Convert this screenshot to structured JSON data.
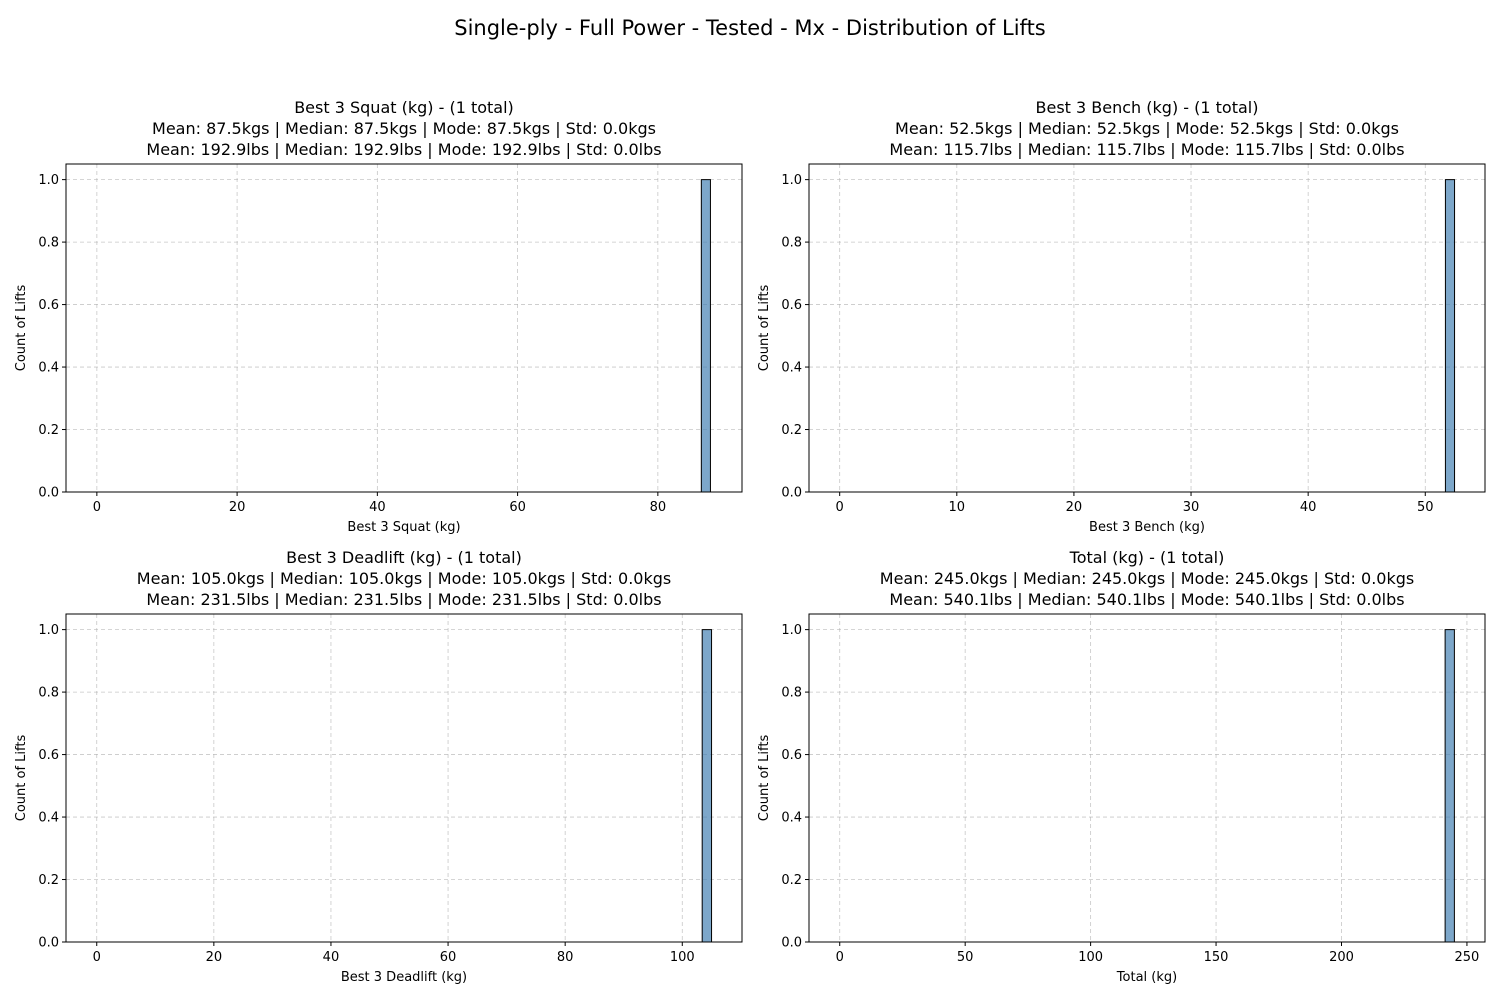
{
  "figure": {
    "suptitle": "Single-ply - Full Power - Tested - Mx - Distribution of Lifts"
  },
  "colors": {
    "bar_fill": "#4682b4",
    "bar_edge": "#000000",
    "grid": "#b0b0b0",
    "axis": "#000000"
  },
  "chart_data": [
    {
      "type": "bar",
      "title_lines": [
        "Best 3 Squat (kg) - (1 total)",
        "Mean: 87.5kgs | Median: 87.5kgs | Mode: 87.5kgs | Std: 0.0kgs",
        "Mean: 192.9lbs | Median: 192.9lbs | Mode: 192.9lbs | Std: 0.0lbs"
      ],
      "xlabel": "Best 3 Squat (kg)",
      "ylabel": "Count of Lifts",
      "xlim": [
        -4.4,
        92.0
      ],
      "ylim": [
        0,
        1.05
      ],
      "xticks": [
        0,
        20,
        40,
        60,
        80
      ],
      "xtick_labels": [
        "0",
        "20",
        "40",
        "60",
        "80"
      ],
      "yticks": [
        0,
        0.2,
        0.4,
        0.6,
        0.8,
        1.0
      ],
      "ytick_labels": [
        "0.0",
        "0.2",
        "0.4",
        "0.6",
        "0.8",
        "1.0"
      ],
      "bars": [
        {
          "x0": 86.2,
          "x1": 87.5,
          "count": 1
        }
      ],
      "grid": true
    },
    {
      "type": "bar",
      "title_lines": [
        "Best 3 Bench (kg) - (1 total)",
        "Mean: 52.5kgs | Median: 52.5kgs | Mode: 52.5kgs | Std: 0.0kgs",
        "Mean: 115.7lbs | Median: 115.7lbs | Mode: 115.7lbs | Std: 0.0lbs"
      ],
      "xlabel": "Best 3 Bench (kg)",
      "ylabel": "Count of Lifts",
      "xlim": [
        -2.62,
        55.1
      ],
      "ylim": [
        0,
        1.05
      ],
      "xticks": [
        0,
        10,
        20,
        30,
        40,
        50
      ],
      "xtick_labels": [
        "0",
        "10",
        "20",
        "30",
        "40",
        "50"
      ],
      "yticks": [
        0,
        0.2,
        0.4,
        0.6,
        0.8,
        1.0
      ],
      "ytick_labels": [
        "0.0",
        "0.2",
        "0.4",
        "0.6",
        "0.8",
        "1.0"
      ],
      "bars": [
        {
          "x0": 51.72,
          "x1": 52.5,
          "count": 1
        }
      ],
      "grid": true
    },
    {
      "type": "bar",
      "title_lines": [
        "Best 3 Deadlift (kg) - (1 total)",
        "Mean: 105.0kgs | Median: 105.0kgs | Mode: 105.0kgs | Std: 0.0kgs",
        "Mean: 231.5lbs | Median: 231.5lbs | Mode: 231.5lbs | Std: 0.0lbs"
      ],
      "xlabel": "Best 3 Deadlift (kg)",
      "ylabel": "Count of Lifts",
      "xlim": [
        -5.25,
        110.2
      ],
      "ylim": [
        0,
        1.05
      ],
      "xticks": [
        0,
        20,
        40,
        60,
        80,
        100
      ],
      "xtick_labels": [
        "0",
        "20",
        "40",
        "60",
        "80",
        "100"
      ],
      "yticks": [
        0,
        0.2,
        0.4,
        0.6,
        0.8,
        1.0
      ],
      "ytick_labels": [
        "0.0",
        "0.2",
        "0.4",
        "0.6",
        "0.8",
        "1.0"
      ],
      "bars": [
        {
          "x0": 103.4,
          "x1": 105.0,
          "count": 1
        }
      ],
      "grid": true
    },
    {
      "type": "bar",
      "title_lines": [
        "Total (kg) - (1 total)",
        "Mean: 245.0kgs | Median: 245.0kgs | Mode: 245.0kgs | Std: 0.0kgs",
        "Mean: 540.1lbs | Median: 540.1lbs | Mode: 540.1lbs | Std: 0.0lbs"
      ],
      "xlabel": "Total (kg)",
      "ylabel": "Count of Lifts",
      "xlim": [
        -12.25,
        257.2
      ],
      "ylim": [
        0,
        1.05
      ],
      "xticks": [
        0,
        50,
        100,
        150,
        200,
        250
      ],
      "xtick_labels": [
        "0",
        "50",
        "100",
        "150",
        "200",
        "250"
      ],
      "yticks": [
        0,
        0.2,
        0.4,
        0.6,
        0.8,
        1.0
      ],
      "ytick_labels": [
        "0.0",
        "0.2",
        "0.4",
        "0.6",
        "0.8",
        "1.0"
      ],
      "bars": [
        {
          "x0": 241.3,
          "x1": 245.0,
          "count": 1
        }
      ],
      "grid": true
    }
  ]
}
